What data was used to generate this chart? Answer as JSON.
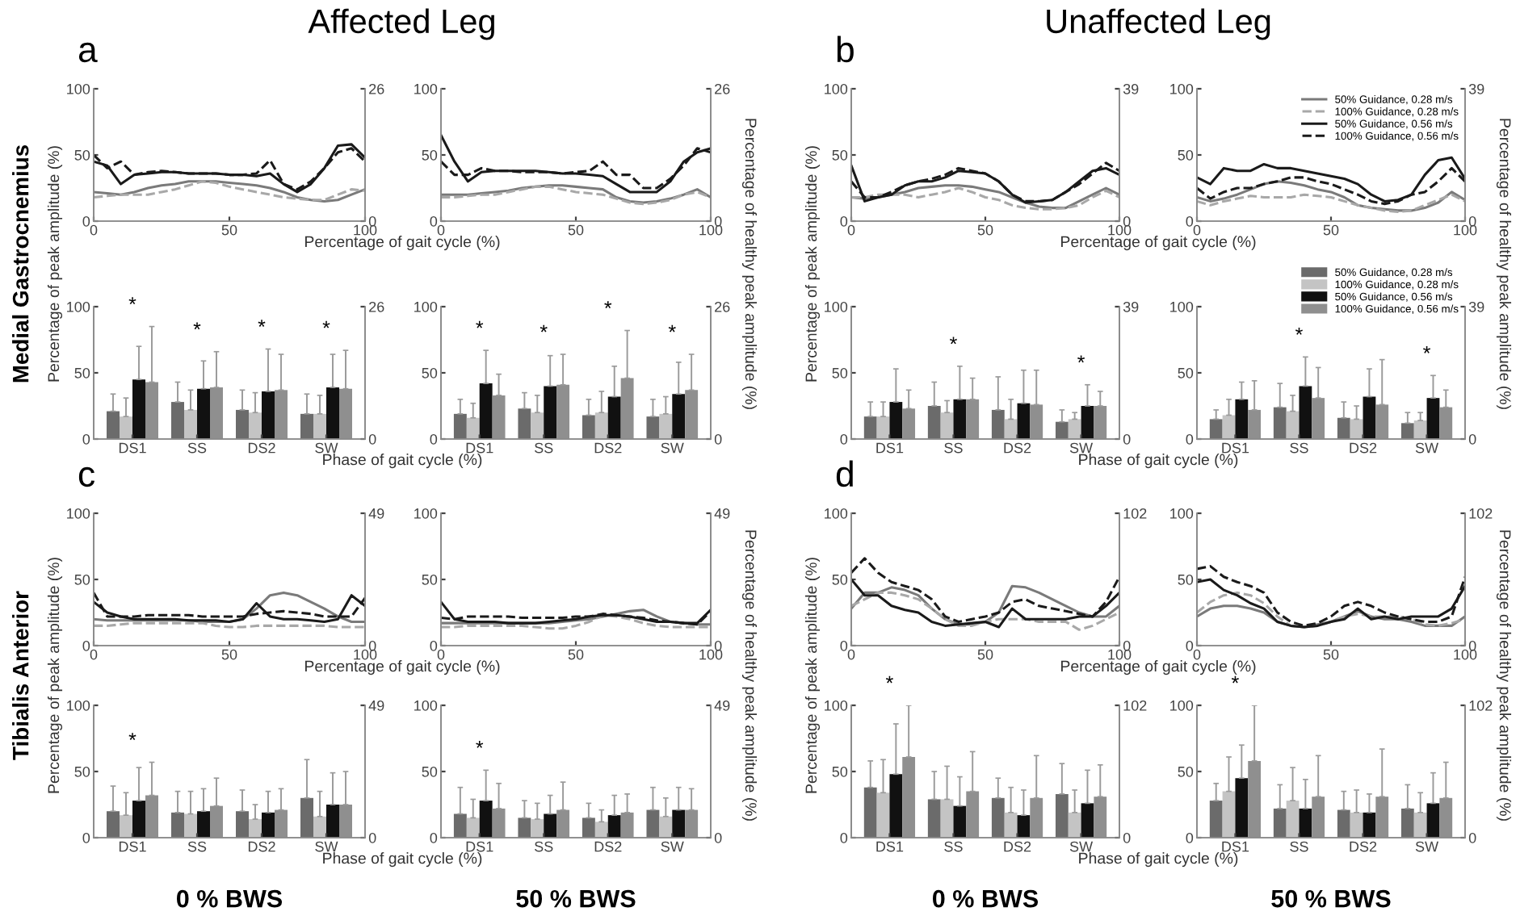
{
  "chart_data": [
    {
      "type": "line",
      "title": "Affected Leg",
      "xlabel": "Percentage of gait cycle (%)",
      "ylabel": "Percentage of peak amplitude (%)",
      "annotations": [
        "a",
        "Medial Gastrocnemius"
      ],
      "x": [
        0,
        5,
        10,
        15,
        20,
        25,
        30,
        35,
        40,
        45,
        50,
        55,
        60,
        65,
        70,
        75,
        80,
        85,
        90,
        95,
        100
      ],
      "xlim": [
        0,
        100
      ],
      "xticks": [
        0,
        50,
        100
      ],
      "ylim": [
        0,
        100
      ],
      "yticks": [
        0,
        50,
        100
      ],
      "y2lim": [
        0,
        26
      ],
      "y2ticks": [
        0,
        26
      ],
      "series": [
        {
          "color": "#7a7a7a",
          "line_style": "solid",
          "values": [
            22,
            21,
            20,
            22,
            25,
            27,
            28,
            30,
            30,
            30,
            29,
            28,
            27,
            25,
            22,
            18,
            16,
            15,
            16,
            20,
            24
          ]
        },
        {
          "color": "#a8a8a8",
          "line_style": "dashed",
          "values": [
            18,
            19,
            20,
            20,
            20,
            22,
            24,
            27,
            30,
            29,
            26,
            24,
            22,
            20,
            18,
            17,
            16,
            16,
            20,
            24,
            23
          ]
        },
        {
          "color": "#1a1a1a",
          "line_style": "solid",
          "values": [
            45,
            42,
            28,
            35,
            36,
            37,
            37,
            36,
            36,
            36,
            35,
            35,
            34,
            36,
            28,
            22,
            28,
            40,
            57,
            58,
            48
          ]
        },
        {
          "color": "#1a1a1a",
          "line_style": "dashed",
          "values": [
            50,
            40,
            45,
            35,
            37,
            38,
            37,
            36,
            36,
            36,
            35,
            35,
            36,
            46,
            28,
            24,
            30,
            40,
            52,
            55,
            45
          ]
        }
      ]
    },
    {
      "type": "line",
      "y2label": "Percentage of healthy peak amplitude (%)",
      "x": [
        0,
        5,
        10,
        15,
        20,
        25,
        30,
        35,
        40,
        45,
        50,
        55,
        60,
        65,
        70,
        75,
        80,
        85,
        90,
        95,
        100
      ],
      "xlim": [
        0,
        100
      ],
      "xticks": [
        0,
        50,
        100
      ],
      "ylim": [
        0,
        100
      ],
      "yticks": [
        0,
        50,
        100
      ],
      "y2lim": [
        0,
        26
      ],
      "y2ticks": [
        0,
        26
      ],
      "series": [
        {
          "color": "#7a7a7a",
          "line_style": "solid",
          "values": [
            20,
            20,
            20,
            21,
            22,
            23,
            25,
            26,
            27,
            27,
            26,
            25,
            24,
            18,
            15,
            14,
            15,
            17,
            20,
            24,
            18
          ]
        },
        {
          "color": "#a8a8a8",
          "line_style": "dashed",
          "values": [
            18,
            18,
            19,
            20,
            20,
            22,
            24,
            26,
            26,
            24,
            22,
            21,
            20,
            17,
            14,
            13,
            14,
            16,
            20,
            22,
            18
          ]
        },
        {
          "color": "#1a1a1a",
          "line_style": "solid",
          "values": [
            65,
            45,
            30,
            37,
            38,
            38,
            38,
            38,
            37,
            36,
            36,
            35,
            34,
            28,
            22,
            22,
            22,
            30,
            45,
            52,
            55
          ]
        },
        {
          "color": "#1a1a1a",
          "line_style": "dashed",
          "values": [
            45,
            35,
            35,
            40,
            38,
            38,
            37,
            37,
            37,
            36,
            37,
            38,
            45,
            35,
            35,
            25,
            25,
            32,
            42,
            55,
            52
          ]
        }
      ]
    },
    {
      "type": "line",
      "title": "Unaffected Leg",
      "xlabel": "Percentage of gait cycle (%)",
      "ylabel": "Percentage of peak amplitude (%)",
      "annotations": [
        "b"
      ],
      "x": [
        0,
        5,
        10,
        15,
        20,
        25,
        30,
        35,
        40,
        45,
        50,
        55,
        60,
        65,
        70,
        75,
        80,
        85,
        90,
        95,
        100
      ],
      "xlim": [
        0,
        100
      ],
      "xticks": [
        0,
        50,
        100
      ],
      "ylim": [
        0,
        100
      ],
      "yticks": [
        0,
        50,
        100
      ],
      "y2lim": [
        0,
        39
      ],
      "y2ticks": [
        0,
        39
      ],
      "series": [
        {
          "color": "#7a7a7a",
          "line_style": "solid",
          "values": [
            18,
            17,
            18,
            20,
            22,
            25,
            26,
            27,
            27,
            26,
            24,
            22,
            18,
            14,
            11,
            10,
            10,
            15,
            20,
            25,
            20
          ]
        },
        {
          "color": "#a8a8a8",
          "line_style": "dashed",
          "values": [
            18,
            18,
            20,
            20,
            20,
            18,
            20,
            22,
            25,
            22,
            18,
            16,
            12,
            10,
            9,
            9,
            10,
            12,
            18,
            23,
            18
          ]
        },
        {
          "color": "#1a1a1a",
          "line_style": "solid",
          "values": [
            42,
            15,
            18,
            20,
            27,
            30,
            30,
            33,
            38,
            37,
            36,
            30,
            20,
            14,
            15,
            16,
            22,
            30,
            38,
            40,
            35
          ]
        },
        {
          "color": "#1a1a1a",
          "line_style": "dashed",
          "values": [
            30,
            18,
            18,
            22,
            27,
            30,
            32,
            35,
            40,
            38,
            36,
            30,
            20,
            15,
            15,
            16,
            22,
            28,
            36,
            44,
            38
          ]
        }
      ]
    },
    {
      "type": "line",
      "y2label": "Percentage of healthy peak amplitude (%)",
      "legend": "top right",
      "x": [
        0,
        5,
        10,
        15,
        20,
        25,
        30,
        35,
        40,
        45,
        50,
        55,
        60,
        65,
        70,
        75,
        80,
        85,
        90,
        95,
        100
      ],
      "xlim": [
        0,
        100
      ],
      "xticks": [
        0,
        50,
        100
      ],
      "ylim": [
        0,
        100
      ],
      "yticks": [
        0,
        50,
        100
      ],
      "y2lim": [
        0,
        39
      ],
      "y2ticks": [
        0,
        39
      ],
      "series": [
        {
          "name": "50% Guidance, 0.28 m/s",
          "color": "#7a7a7a",
          "line_style": "solid",
          "values": [
            18,
            15,
            17,
            20,
            24,
            28,
            30,
            29,
            27,
            24,
            22,
            18,
            12,
            10,
            9,
            8,
            8,
            10,
            14,
            22,
            16
          ]
        },
        {
          "name": "100% Guidance, 0.28 m/s",
          "color": "#a8a8a8",
          "line_style": "dashed",
          "values": [
            15,
            12,
            15,
            17,
            19,
            18,
            18,
            18,
            20,
            19,
            18,
            15,
            12,
            10,
            8,
            7,
            8,
            12,
            16,
            20,
            15
          ]
        },
        {
          "name": "50% Guidance, 0.56 m/s",
          "color": "#1a1a1a",
          "line_style": "solid",
          "values": [
            33,
            28,
            40,
            38,
            38,
            43,
            40,
            40,
            38,
            36,
            34,
            32,
            28,
            20,
            15,
            16,
            20,
            35,
            46,
            48,
            32
          ]
        },
        {
          "name": "100% Guidance, 0.56 m/s",
          "color": "#1a1a1a",
          "line_style": "dashed",
          "values": [
            25,
            17,
            22,
            25,
            25,
            28,
            30,
            33,
            33,
            30,
            28,
            24,
            20,
            15,
            13,
            15,
            20,
            22,
            30,
            40,
            30
          ]
        }
      ]
    },
    {
      "type": "bar",
      "xlabel": "Phase of gait cycle (%)",
      "categories": [
        "DS1",
        "SS",
        "DS2",
        "SW"
      ],
      "ylim": [
        0,
        100
      ],
      "yticks": [
        0,
        50,
        100
      ],
      "y2lim": [
        0,
        26
      ],
      "y2ticks": [
        0,
        26
      ],
      "annotations": [
        "*",
        "*",
        "*",
        "*"
      ],
      "series": [
        {
          "color": "#6b6b6b",
          "values": [
            21,
            28,
            22,
            19
          ],
          "errors": [
            [
              21,
              34
            ],
            [
              28,
              43
            ],
            [
              22,
              37
            ],
            [
              19,
              34
            ]
          ]
        },
        {
          "color": "#c4c4c4",
          "values": [
            17,
            22,
            20,
            19
          ],
          "errors": [
            [
              17,
              31
            ],
            [
              22,
              37
            ],
            [
              20,
              35
            ],
            [
              19,
              33
            ]
          ]
        },
        {
          "color": "#111111",
          "values": [
            45,
            38,
            36,
            39
          ],
          "errors": [
            [
              45,
              70
            ],
            [
              38,
              59
            ],
            [
              36,
              68
            ],
            [
              39,
              64
            ]
          ]
        },
        {
          "color": "#8f8f8f",
          "values": [
            43,
            39,
            37,
            38
          ],
          "errors": [
            [
              43,
              85
            ],
            [
              39,
              66
            ],
            [
              37,
              64
            ],
            [
              38,
              67
            ]
          ]
        }
      ]
    },
    {
      "type": "bar",
      "categories": [
        "DS1",
        "SS",
        "DS2",
        "SW"
      ],
      "ylim": [
        0,
        100
      ],
      "yticks": [
        0,
        50,
        100
      ],
      "y2lim": [
        0,
        26
      ],
      "y2ticks": [
        0,
        26
      ],
      "annotations": [
        "*",
        "*",
        "*",
        "*"
      ],
      "series": [
        {
          "color": "#6b6b6b",
          "values": [
            19,
            23,
            18,
            17
          ],
          "errors": [
            [
              19,
              30
            ],
            [
              23,
              35
            ],
            [
              18,
              30
            ],
            [
              17,
              30
            ]
          ]
        },
        {
          "color": "#c4c4c4",
          "values": [
            16,
            20,
            20,
            19
          ],
          "errors": [
            [
              16,
              27
            ],
            [
              20,
              33
            ],
            [
              20,
              36
            ],
            [
              19,
              32
            ]
          ]
        },
        {
          "color": "#111111",
          "values": [
            42,
            40,
            32,
            34
          ],
          "errors": [
            [
              42,
              67
            ],
            [
              40,
              63
            ],
            [
              32,
              55
            ],
            [
              34,
              58
            ]
          ]
        },
        {
          "color": "#8f8f8f",
          "values": [
            33,
            41,
            46,
            37
          ],
          "errors": [
            [
              33,
              49
            ],
            [
              41,
              64
            ],
            [
              46,
              82
            ],
            [
              37,
              64
            ]
          ]
        }
      ]
    },
    {
      "type": "bar",
      "xlabel": "Phase of gait cycle (%)",
      "categories": [
        "DS1",
        "SS",
        "DS2",
        "SW"
      ],
      "ylim": [
        0,
        100
      ],
      "yticks": [
        0,
        50,
        100
      ],
      "y2lim": [
        0,
        39
      ],
      "y2ticks": [
        0,
        39
      ],
      "annotations": [
        "*",
        "*"
      ],
      "series": [
        {
          "color": "#6b6b6b",
          "values": [
            17,
            25,
            22,
            13
          ],
          "errors": [
            [
              17,
              28
            ],
            [
              25,
              43
            ],
            [
              22,
              47
            ],
            [
              13,
              22
            ]
          ]
        },
        {
          "color": "#c4c4c4",
          "values": [
            17,
            20,
            15,
            15
          ],
          "errors": [
            [
              17,
              28
            ],
            [
              20,
              29
            ],
            [
              15,
              30
            ],
            [
              15,
              20
            ]
          ]
        },
        {
          "color": "#111111",
          "values": [
            28,
            30,
            27,
            25
          ],
          "errors": [
            [
              28,
              53
            ],
            [
              30,
              55
            ],
            [
              27,
              52
            ],
            [
              25,
              41
            ]
          ]
        },
        {
          "color": "#8f8f8f",
          "values": [
            23,
            30,
            26,
            25
          ],
          "errors": [
            [
              23,
              37
            ],
            [
              30,
              46
            ],
            [
              26,
              52
            ],
            [
              25,
              36
            ]
          ]
        }
      ]
    },
    {
      "type": "bar",
      "legend": "top right",
      "categories": [
        "DS1",
        "SS",
        "DS2",
        "SW"
      ],
      "ylim": [
        0,
        100
      ],
      "yticks": [
        0,
        50,
        100
      ],
      "y2lim": [
        0,
        39
      ],
      "y2ticks": [
        0,
        39
      ],
      "annotations": [
        "*",
        "*"
      ],
      "series": [
        {
          "name": "50% Guidance, 0.28 m/s",
          "color": "#6b6b6b",
          "values": [
            15,
            24,
            16,
            12
          ],
          "errors": [
            [
              15,
              22
            ],
            [
              24,
              42
            ],
            [
              16,
              28
            ],
            [
              12,
              20
            ]
          ]
        },
        {
          "name": "100% Guidance, 0.28 m/s",
          "color": "#c4c4c4",
          "values": [
            18,
            21,
            15,
            14
          ],
          "errors": [
            [
              18,
              30
            ],
            [
              21,
              33
            ],
            [
              15,
              25
            ],
            [
              14,
              20
            ]
          ]
        },
        {
          "name": "50% Guidance, 0.56 m/s",
          "color": "#111111",
          "values": [
            30,
            40,
            32,
            31
          ],
          "errors": [
            [
              30,
              43
            ],
            [
              40,
              62
            ],
            [
              32,
              53
            ],
            [
              31,
              48
            ]
          ]
        },
        {
          "name": "100% Guidance, 0.56 m/s",
          "color": "#8f8f8f",
          "values": [
            22,
            31,
            26,
            24
          ],
          "errors": [
            [
              22,
              44
            ],
            [
              31,
              54
            ],
            [
              26,
              60
            ],
            [
              24,
              37
            ]
          ]
        }
      ]
    },
    {
      "type": "line",
      "xlabel": "Percentage of gait cycle (%)",
      "ylabel": "Percentage of peak amplitude (%)",
      "annotations": [
        "c",
        "Tibialis Anterior"
      ],
      "x": [
        0,
        5,
        10,
        15,
        20,
        25,
        30,
        35,
        40,
        45,
        50,
        55,
        60,
        65,
        70,
        75,
        80,
        85,
        90,
        95,
        100
      ],
      "xlim": [
        0,
        100
      ],
      "xticks": [
        0,
        50,
        100
      ],
      "ylim": [
        0,
        100
      ],
      "yticks": [
        0,
        50,
        100
      ],
      "y2lim": [
        0,
        49
      ],
      "y2ticks": [
        0,
        49
      ],
      "series": [
        {
          "color": "#7a7a7a",
          "line_style": "solid",
          "values": [
            20,
            19,
            19,
            19,
            19,
            19,
            19,
            19,
            18,
            18,
            18,
            20,
            28,
            38,
            40,
            38,
            33,
            28,
            22,
            18,
            18
          ]
        },
        {
          "color": "#a8a8a8",
          "line_style": "dashed",
          "values": [
            15,
            15,
            16,
            17,
            17,
            17,
            17,
            17,
            17,
            15,
            14,
            14,
            15,
            15,
            15,
            15,
            15,
            15,
            14,
            14,
            14
          ]
        },
        {
          "color": "#1a1a1a",
          "line_style": "solid",
          "values": [
            33,
            25,
            22,
            20,
            20,
            20,
            20,
            19,
            19,
            19,
            18,
            20,
            32,
            22,
            20,
            20,
            19,
            18,
            20,
            38,
            30
          ]
        },
        {
          "color": "#1a1a1a",
          "line_style": "dashed",
          "values": [
            40,
            22,
            22,
            22,
            23,
            23,
            23,
            23,
            22,
            22,
            22,
            22,
            24,
            25,
            26,
            25,
            24,
            22,
            22,
            22,
            36
          ]
        }
      ]
    },
    {
      "type": "line",
      "y2label": "Percentage of healthy peak amplitude (%)",
      "x": [
        0,
        5,
        10,
        15,
        20,
        25,
        30,
        35,
        40,
        45,
        50,
        55,
        60,
        65,
        70,
        75,
        80,
        85,
        90,
        95,
        100
      ],
      "xlim": [
        0,
        100
      ],
      "xticks": [
        0,
        50,
        100
      ],
      "ylim": [
        0,
        100
      ],
      "yticks": [
        0,
        50,
        100
      ],
      "y2lim": [
        0,
        49
      ],
      "y2ticks": [
        0,
        49
      ],
      "series": [
        {
          "color": "#7a7a7a",
          "line_style": "solid",
          "values": [
            17,
            17,
            17,
            17,
            17,
            17,
            17,
            17,
            17,
            18,
            19,
            20,
            22,
            24,
            26,
            27,
            22,
            18,
            17,
            16,
            16
          ]
        },
        {
          "color": "#a8a8a8",
          "line_style": "dashed",
          "values": [
            14,
            14,
            15,
            15,
            15,
            15,
            15,
            14,
            13,
            13,
            15,
            18,
            23,
            22,
            20,
            17,
            15,
            14,
            14,
            14,
            14
          ]
        },
        {
          "color": "#1a1a1a",
          "line_style": "solid",
          "values": [
            33,
            20,
            18,
            18,
            18,
            17,
            17,
            17,
            18,
            19,
            20,
            22,
            23,
            23,
            22,
            20,
            18,
            18,
            17,
            17,
            27
          ]
        },
        {
          "color": "#1a1a1a",
          "line_style": "dashed",
          "values": [
            21,
            20,
            22,
            22,
            22,
            22,
            21,
            21,
            21,
            21,
            22,
            22,
            24,
            23,
            22,
            21,
            19,
            18,
            17,
            16,
            26
          ]
        }
      ]
    },
    {
      "type": "line",
      "xlabel": "Percentage of gait cycle (%)",
      "ylabel": "Percentage of peak amplitude (%)",
      "annotations": [
        "d"
      ],
      "x": [
        0,
        5,
        10,
        15,
        20,
        25,
        30,
        35,
        40,
        45,
        50,
        55,
        60,
        65,
        70,
        75,
        80,
        85,
        90,
        95,
        100
      ],
      "xlim": [
        0,
        100
      ],
      "xticks": [
        0,
        50,
        100
      ],
      "ylim": [
        0,
        100
      ],
      "yticks": [
        0,
        50,
        100
      ],
      "y2lim": [
        0,
        102
      ],
      "y2ticks": [
        0,
        102
      ],
      "series": [
        {
          "color": "#7a7a7a",
          "line_style": "solid",
          "values": [
            28,
            40,
            40,
            44,
            42,
            38,
            28,
            20,
            16,
            16,
            18,
            25,
            45,
            44,
            40,
            35,
            30,
            25,
            22,
            22,
            30
          ]
        },
        {
          "color": "#a8a8a8",
          "line_style": "dashed",
          "values": [
            30,
            35,
            40,
            40,
            38,
            35,
            28,
            20,
            15,
            15,
            18,
            20,
            20,
            20,
            18,
            18,
            18,
            12,
            15,
            20,
            25
          ]
        },
        {
          "color": "#1a1a1a",
          "line_style": "solid",
          "values": [
            50,
            38,
            38,
            30,
            27,
            25,
            18,
            15,
            16,
            17,
            18,
            14,
            28,
            20,
            20,
            20,
            20,
            22,
            22,
            30,
            40
          ]
        },
        {
          "color": "#1a1a1a",
          "line_style": "dashed",
          "values": [
            55,
            66,
            55,
            48,
            45,
            42,
            35,
            22,
            18,
            20,
            22,
            25,
            33,
            35,
            30,
            28,
            26,
            24,
            22,
            33,
            52
          ]
        }
      ]
    },
    {
      "type": "line",
      "y2label": "Percentage of healthy peak amplitude (%)",
      "x": [
        0,
        5,
        10,
        15,
        20,
        25,
        30,
        35,
        40,
        45,
        50,
        55,
        60,
        65,
        70,
        75,
        80,
        85,
        90,
        95,
        100
      ],
      "xlim": [
        0,
        100
      ],
      "xticks": [
        0,
        50,
        100
      ],
      "ylim": [
        0,
        100
      ],
      "yticks": [
        0,
        50,
        100
      ],
      "y2lim": [
        0,
        102
      ],
      "y2ticks": [
        0,
        102
      ],
      "series": [
        {
          "color": "#7a7a7a",
          "line_style": "solid",
          "values": [
            22,
            28,
            30,
            30,
            28,
            25,
            18,
            15,
            14,
            16,
            18,
            22,
            26,
            22,
            20,
            20,
            18,
            15,
            15,
            15,
            22
          ]
        },
        {
          "color": "#a8a8a8",
          "line_style": "dashed",
          "values": [
            25,
            33,
            38,
            40,
            38,
            32,
            22,
            15,
            14,
            15,
            18,
            22,
            24,
            22,
            22,
            22,
            20,
            16,
            15,
            17,
            20
          ]
        },
        {
          "color": "#1a1a1a",
          "line_style": "solid",
          "values": [
            48,
            50,
            42,
            38,
            32,
            28,
            18,
            15,
            14,
            15,
            18,
            20,
            28,
            20,
            22,
            20,
            22,
            22,
            22,
            28,
            45
          ]
        },
        {
          "color": "#1a1a1a",
          "line_style": "dashed",
          "values": [
            58,
            60,
            52,
            48,
            45,
            40,
            25,
            18,
            15,
            17,
            22,
            30,
            33,
            30,
            25,
            22,
            20,
            18,
            18,
            22,
            52
          ]
        }
      ]
    },
    {
      "type": "bar",
      "xlabel": "Phase of gait cycle (%)",
      "categories": [
        "DS1",
        "SS",
        "DS2",
        "SW"
      ],
      "ylim": [
        0,
        100
      ],
      "yticks": [
        0,
        50,
        100
      ],
      "y2lim": [
        0,
        49
      ],
      "y2ticks": [
        0,
        49
      ],
      "annotations": [
        "0 % BWS",
        "*"
      ],
      "series": [
        {
          "color": "#6b6b6b",
          "values": [
            20,
            19,
            20,
            30
          ],
          "errors": [
            [
              20,
              39
            ],
            [
              19,
              35
            ],
            [
              20,
              36
            ],
            [
              30,
              59
            ]
          ]
        },
        {
          "color": "#c4c4c4",
          "values": [
            17,
            18,
            14,
            16
          ],
          "errors": [
            [
              17,
              34
            ],
            [
              18,
              35
            ],
            [
              14,
              25
            ],
            [
              16,
              35
            ]
          ]
        },
        {
          "color": "#111111",
          "values": [
            28,
            20,
            19,
            25
          ],
          "errors": [
            [
              28,
              53
            ],
            [
              20,
              37
            ],
            [
              19,
              35
            ],
            [
              25,
              49
            ]
          ]
        },
        {
          "color": "#8f8f8f",
          "values": [
            32,
            24,
            21,
            25
          ],
          "errors": [
            [
              32,
              57
            ],
            [
              24,
              45
            ],
            [
              21,
              37
            ],
            [
              25,
              50
            ]
          ]
        }
      ]
    },
    {
      "type": "bar",
      "categories": [
        "DS1",
        "SS",
        "DS2",
        "SW"
      ],
      "ylim": [
        0,
        100
      ],
      "yticks": [
        0,
        50,
        100
      ],
      "y2lim": [
        0,
        49
      ],
      "y2ticks": [
        0,
        49
      ],
      "annotations": [
        "50 % BWS",
        "*"
      ],
      "series": [
        {
          "color": "#6b6b6b",
          "values": [
            18,
            15,
            15,
            21
          ],
          "errors": [
            [
              18,
              38
            ],
            [
              15,
              28
            ],
            [
              15,
              26
            ],
            [
              21,
              38
            ]
          ]
        },
        {
          "color": "#c4c4c4",
          "values": [
            15,
            14,
            12,
            16
          ],
          "errors": [
            [
              15,
              29
            ],
            [
              14,
              26
            ],
            [
              12,
              21
            ],
            [
              16,
              30
            ]
          ]
        },
        {
          "color": "#111111",
          "values": [
            28,
            18,
            17,
            21
          ],
          "errors": [
            [
              28,
              51
            ],
            [
              18,
              32
            ],
            [
              17,
              32
            ],
            [
              21,
              38
            ]
          ]
        },
        {
          "color": "#8f8f8f",
          "values": [
            22,
            21,
            19,
            21
          ],
          "errors": [
            [
              22,
              41
            ],
            [
              21,
              42
            ],
            [
              19,
              33
            ],
            [
              21,
              37
            ]
          ]
        }
      ]
    },
    {
      "type": "bar",
      "xlabel": "Phase of gait cycle (%)",
      "categories": [
        "DS1",
        "SS",
        "DS2",
        "SW"
      ],
      "ylim": [
        0,
        100
      ],
      "yticks": [
        0,
        50,
        100
      ],
      "y2lim": [
        0,
        102
      ],
      "y2ticks": [
        0,
        102
      ],
      "annotations": [
        "0 % BWS",
        "*"
      ],
      "series": [
        {
          "color": "#6b6b6b",
          "values": [
            38,
            29,
            30,
            33
          ],
          "errors": [
            [
              38,
              58
            ],
            [
              29,
              50
            ],
            [
              30,
              45
            ],
            [
              33,
              56
            ]
          ]
        },
        {
          "color": "#c4c4c4",
          "values": [
            34,
            29,
            19,
            19
          ],
          "errors": [
            [
              34,
              59
            ],
            [
              29,
              54
            ],
            [
              19,
              38
            ],
            [
              19,
              36
            ]
          ]
        },
        {
          "color": "#111111",
          "values": [
            48,
            24,
            17,
            26
          ],
          "errors": [
            [
              48,
              86
            ],
            [
              24,
              46
            ],
            [
              17,
              36
            ],
            [
              26,
              51
            ]
          ]
        },
        {
          "color": "#8f8f8f",
          "values": [
            61,
            35,
            30,
            31
          ],
          "errors": [
            [
              61,
              100
            ],
            [
              35,
              65
            ],
            [
              30,
              62
            ],
            [
              31,
              55
            ]
          ]
        }
      ]
    },
    {
      "type": "bar",
      "categories": [
        "DS1",
        "SS",
        "DS2",
        "SW"
      ],
      "ylim": [
        0,
        100
      ],
      "yticks": [
        0,
        50,
        100
      ],
      "y2lim": [
        0,
        102
      ],
      "y2ticks": [
        0,
        102
      ],
      "annotations": [
        "50 % BWS",
        "*"
      ],
      "series": [
        {
          "color": "#6b6b6b",
          "values": [
            28,
            22,
            21,
            22
          ],
          "errors": [
            [
              28,
              41
            ],
            [
              22,
              40
            ],
            [
              21,
              35
            ],
            [
              22,
              40
            ]
          ]
        },
        {
          "color": "#c4c4c4",
          "values": [
            35,
            28,
            19,
            19
          ],
          "errors": [
            [
              35,
              61
            ],
            [
              28,
              53
            ],
            [
              19,
              36
            ],
            [
              19,
              34
            ]
          ]
        },
        {
          "color": "#111111",
          "values": [
            45,
            22,
            19,
            26
          ],
          "errors": [
            [
              45,
              70
            ],
            [
              22,
              44
            ],
            [
              19,
              33
            ],
            [
              26,
              49
            ]
          ]
        },
        {
          "color": "#8f8f8f",
          "values": [
            58,
            31,
            31,
            30
          ],
          "errors": [
            [
              58,
              100
            ],
            [
              31,
              62
            ],
            [
              31,
              67
            ],
            [
              30,
              57
            ]
          ]
        }
      ]
    }
  ]
}
